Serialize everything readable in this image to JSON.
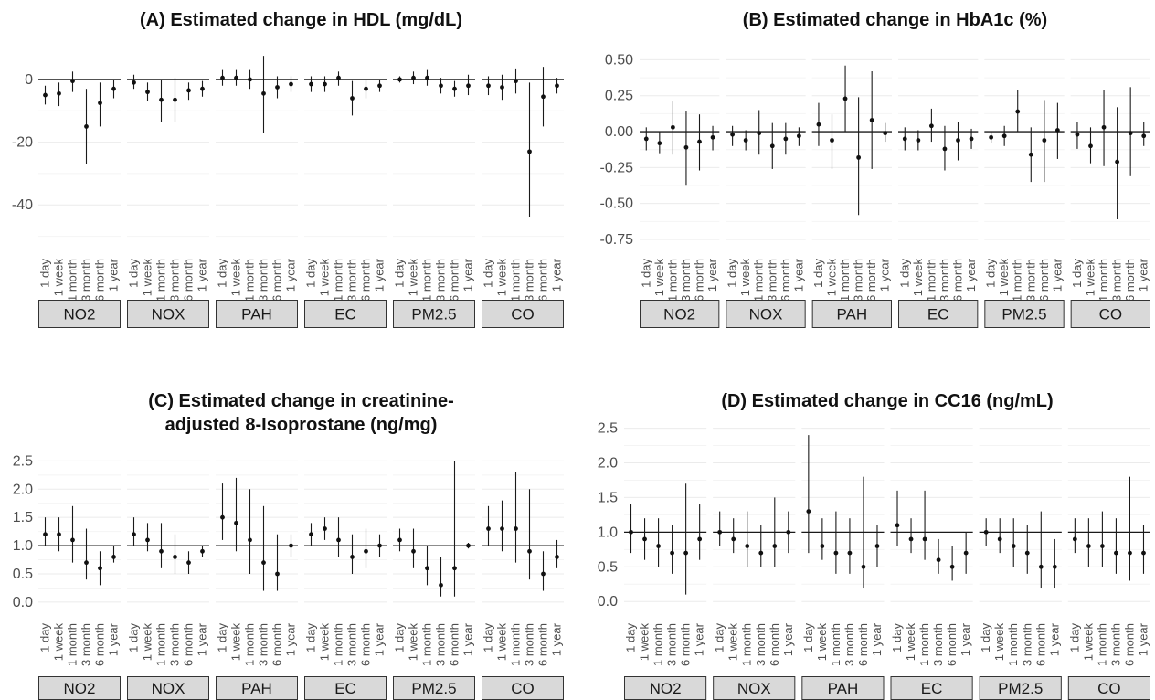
{
  "chart_data": [
    {
      "panel": "A",
      "type": "scatter",
      "subtype": "point-range facets",
      "title": [
        "(A) Estimated change in HDL (mg/dL)"
      ],
      "ylim": [
        -51,
        9
      ],
      "yticks": [
        0,
        -20,
        -40
      ],
      "ytick_labels": [
        "0",
        "-20",
        "-40"
      ],
      "reference_y": 0,
      "x": [
        "1 day",
        "1 week",
        "1 month",
        "3 month",
        "6 month",
        "1 year"
      ],
      "facets": [
        "NO2",
        "NOX",
        "PAH",
        "EC",
        "PM2.5",
        "CO"
      ],
      "series": [
        {
          "name": "NO2",
          "estimate": [
            -5,
            -4.5,
            -0.5,
            -15,
            -7.5,
            -3
          ],
          "lower": [
            -8,
            -8.5,
            -4,
            -27,
            -15,
            -6
          ],
          "upper": [
            -2,
            -1,
            2.5,
            -3,
            -1,
            0
          ]
        },
        {
          "name": "NOX",
          "estimate": [
            -1,
            -4,
            -6.5,
            -6.5,
            -3.5,
            -3
          ],
          "lower": [
            -3,
            -7,
            -13.5,
            -13.5,
            -6.5,
            -5.5
          ],
          "upper": [
            1.5,
            -1,
            0,
            0.5,
            -1,
            -0.5
          ]
        },
        {
          "name": "PAH",
          "estimate": [
            0.5,
            0.5,
            0,
            -4.5,
            -2.5,
            -1.5
          ],
          "lower": [
            -2,
            -2,
            -3,
            -17,
            -6,
            -4
          ],
          "upper": [
            3,
            3,
            3,
            7.5,
            1,
            1
          ]
        },
        {
          "name": "EC",
          "estimate": [
            -1.5,
            -1.5,
            0.5,
            -6,
            -3,
            -2
          ],
          "lower": [
            -4,
            -4,
            -2,
            -11.5,
            -6,
            -4
          ],
          "upper": [
            1,
            1,
            2.5,
            -0.5,
            0,
            0
          ]
        },
        {
          "name": "PM2.5",
          "estimate": [
            0,
            0.5,
            0.5,
            -2,
            -3,
            -2
          ],
          "lower": [
            -1,
            -1.5,
            -2,
            -4.5,
            -5.5,
            -5
          ],
          "upper": [
            1,
            2.5,
            3,
            0.5,
            -0.5,
            1.5
          ]
        },
        {
          "name": "CO",
          "estimate": [
            -2,
            -2.5,
            -0.5,
            -23,
            -5.5,
            -2
          ],
          "lower": [
            -5,
            -6.5,
            -4.5,
            -44,
            -15,
            -4.5
          ],
          "upper": [
            1,
            1.5,
            3.5,
            -1,
            4,
            0.5
          ]
        }
      ]
    },
    {
      "panel": "B",
      "type": "scatter",
      "subtype": "point-range facets",
      "title": [
        "(B) Estimated change in HbA1c (%)"
      ],
      "ylim": [
        -0.75,
        0.56
      ],
      "yticks": [
        0.5,
        0.25,
        0,
        -0.25,
        -0.5,
        -0.75
      ],
      "ytick_labels": [
        "0.50",
        "0.25",
        "0.00",
        "-0.25",
        "-0.50",
        "-0.75"
      ],
      "reference_y": 0,
      "x": [
        "1 day",
        "1 week",
        "1 month",
        "3 month",
        "6 month",
        "1 year"
      ],
      "facets": [
        "NO2",
        "NOX",
        "PAH",
        "EC",
        "PM2.5",
        "CO"
      ],
      "series": [
        {
          "name": "NO2",
          "estimate": [
            -0.05,
            -0.08,
            0.03,
            -0.11,
            -0.07,
            -0.04
          ],
          "lower": [
            -0.13,
            -0.15,
            -0.16,
            -0.37,
            -0.27,
            -0.13
          ],
          "upper": [
            0.03,
            0.0,
            0.21,
            0.14,
            0.12,
            0.04
          ]
        },
        {
          "name": "NOX",
          "estimate": [
            -0.02,
            -0.06,
            -0.01,
            -0.1,
            -0.05,
            -0.03
          ],
          "lower": [
            -0.1,
            -0.13,
            -0.16,
            -0.26,
            -0.16,
            -0.1
          ],
          "upper": [
            0.04,
            0.01,
            0.15,
            0.06,
            0.06,
            0.03
          ]
        },
        {
          "name": "PAH",
          "estimate": [
            0.05,
            -0.06,
            0.23,
            -0.18,
            0.08,
            -0.01
          ],
          "lower": [
            -0.1,
            -0.26,
            0.0,
            -0.58,
            -0.26,
            -0.07
          ],
          "upper": [
            0.2,
            0.12,
            0.46,
            0.24,
            0.42,
            0.06
          ]
        },
        {
          "name": "EC",
          "estimate": [
            -0.05,
            -0.06,
            0.04,
            -0.12,
            -0.06,
            -0.05
          ],
          "lower": [
            -0.13,
            -0.13,
            -0.07,
            -0.27,
            -0.2,
            -0.12
          ],
          "upper": [
            0.03,
            0.01,
            0.16,
            0.04,
            0.07,
            0.02
          ]
        },
        {
          "name": "PM2.5",
          "estimate": [
            -0.04,
            -0.03,
            0.14,
            -0.16,
            -0.06,
            0.01
          ],
          "lower": [
            -0.08,
            -0.1,
            0.0,
            -0.35,
            -0.35,
            -0.19
          ],
          "upper": [
            0.0,
            0.04,
            0.29,
            0.03,
            0.22,
            0.2
          ]
        },
        {
          "name": "CO",
          "estimate": [
            -0.02,
            -0.1,
            0.03,
            -0.21,
            -0.01,
            -0.03
          ],
          "lower": [
            -0.12,
            -0.22,
            -0.24,
            -0.61,
            -0.31,
            -0.1
          ],
          "upper": [
            0.07,
            0.03,
            0.29,
            0.17,
            0.31,
            0.07
          ]
        }
      ]
    },
    {
      "panel": "C",
      "type": "scatter",
      "subtype": "point-range facets",
      "title": [
        "(C) Estimated change in creatinine-",
        "adjusted 8-Isoprostane (ng/mg)"
      ],
      "ylim": [
        -0.05,
        2.7
      ],
      "yticks": [
        2.5,
        2.0,
        1.5,
        1.0,
        0.5,
        0.0
      ],
      "ytick_labels": [
        "2.5",
        "2.0",
        "1.5",
        "1.0",
        "0.5",
        "0.0"
      ],
      "reference_y": 1,
      "x": [
        "1 day",
        "1 week",
        "1 month",
        "3 month",
        "6 month",
        "1 year"
      ],
      "facets": [
        "NO2",
        "NOX",
        "PAH",
        "EC",
        "PM2.5",
        "CO"
      ],
      "series": [
        {
          "name": "NO2",
          "estimate": [
            1.2,
            1.2,
            1.1,
            0.7,
            0.6,
            0.8
          ],
          "lower": [
            1.0,
            0.9,
            0.7,
            0.4,
            0.3,
            0.7
          ],
          "upper": [
            1.5,
            1.5,
            1.7,
            1.3,
            0.9,
            1.0
          ]
        },
        {
          "name": "NOX",
          "estimate": [
            1.2,
            1.1,
            0.9,
            0.8,
            0.7,
            0.9
          ],
          "lower": [
            1.0,
            0.9,
            0.6,
            0.5,
            0.5,
            0.8
          ],
          "upper": [
            1.5,
            1.4,
            1.4,
            1.2,
            0.9,
            1.0
          ]
        },
        {
          "name": "PAH",
          "estimate": [
            1.5,
            1.4,
            1.1,
            0.7,
            0.5,
            1.0
          ],
          "lower": [
            1.1,
            0.9,
            0.5,
            0.2,
            0.2,
            0.8
          ],
          "upper": [
            2.1,
            2.2,
            2.0,
            1.7,
            1.2,
            1.2
          ]
        },
        {
          "name": "EC",
          "estimate": [
            1.2,
            1.3,
            1.1,
            0.8,
            0.9,
            1.0
          ],
          "lower": [
            1.0,
            1.1,
            0.8,
            0.5,
            0.6,
            0.8
          ],
          "upper": [
            1.4,
            1.5,
            1.5,
            1.2,
            1.3,
            1.2
          ]
        },
        {
          "name": "PM2.5",
          "estimate": [
            1.1,
            0.9,
            0.6,
            0.3,
            0.6,
            1.0
          ],
          "lower": [
            0.9,
            0.6,
            0.3,
            0.1,
            0.1,
            0.95
          ],
          "upper": [
            1.3,
            1.3,
            1.0,
            0.8,
            2.5,
            1.05
          ]
        },
        {
          "name": "CO",
          "estimate": [
            1.3,
            1.3,
            1.3,
            0.9,
            0.5,
            0.8
          ],
          "lower": [
            1.0,
            0.9,
            0.7,
            0.4,
            0.2,
            0.6
          ],
          "upper": [
            1.7,
            1.8,
            2.3,
            2.0,
            0.9,
            1.1
          ]
        }
      ]
    },
    {
      "panel": "D",
      "type": "scatter",
      "subtype": "point-range facets",
      "title": [
        "(D) Estimated change in CC16 (ng/mL)"
      ],
      "ylim": [
        -0.05,
        2.6
      ],
      "yticks": [
        2.5,
        2.0,
        1.5,
        1.0,
        0.5,
        0.0
      ],
      "ytick_labels": [
        "2.5",
        "2.0",
        "1.5",
        "1.0",
        "0.5",
        "0.0"
      ],
      "reference_y": 1,
      "x": [
        "1 day",
        "1 week",
        "1 month",
        "3 month",
        "6 month",
        "1 year"
      ],
      "facets": [
        "NO2",
        "NOX",
        "PAH",
        "EC",
        "PM2.5",
        "CO"
      ],
      "series": [
        {
          "name": "NO2",
          "estimate": [
            1.0,
            0.9,
            0.8,
            0.7,
            0.7,
            0.9
          ],
          "lower": [
            0.7,
            0.6,
            0.5,
            0.4,
            0.1,
            0.6
          ],
          "upper": [
            1.4,
            1.2,
            1.2,
            1.1,
            1.7,
            1.4
          ]
        },
        {
          "name": "NOX",
          "estimate": [
            1.0,
            0.9,
            0.8,
            0.7,
            0.8,
            1.0
          ],
          "lower": [
            0.8,
            0.7,
            0.5,
            0.5,
            0.5,
            0.7
          ],
          "upper": [
            1.3,
            1.2,
            1.3,
            1.1,
            1.5,
            1.3
          ]
        },
        {
          "name": "PAH",
          "estimate": [
            1.3,
            0.8,
            0.7,
            0.7,
            0.5,
            0.8
          ],
          "lower": [
            0.7,
            0.6,
            0.4,
            0.4,
            0.2,
            0.5
          ],
          "upper": [
            2.4,
            1.2,
            1.3,
            1.2,
            1.8,
            1.1
          ]
        },
        {
          "name": "EC",
          "estimate": [
            1.1,
            0.9,
            0.9,
            0.6,
            0.5,
            0.7
          ],
          "lower": [
            0.8,
            0.7,
            0.6,
            0.4,
            0.3,
            0.4
          ],
          "upper": [
            1.6,
            1.2,
            1.6,
            0.9,
            0.8,
            1.0
          ]
        },
        {
          "name": "PM2.5",
          "estimate": [
            1.0,
            0.9,
            0.8,
            0.7,
            0.5,
            0.5
          ],
          "lower": [
            0.8,
            0.7,
            0.5,
            0.4,
            0.2,
            0.2
          ],
          "upper": [
            1.2,
            1.2,
            1.2,
            1.1,
            1.3,
            0.9
          ]
        },
        {
          "name": "CO",
          "estimate": [
            0.9,
            0.8,
            0.8,
            0.7,
            0.7,
            0.7
          ],
          "lower": [
            0.7,
            0.5,
            0.5,
            0.4,
            0.3,
            0.4
          ],
          "upper": [
            1.2,
            1.2,
            1.3,
            1.2,
            1.8,
            1.1
          ]
        }
      ]
    }
  ]
}
